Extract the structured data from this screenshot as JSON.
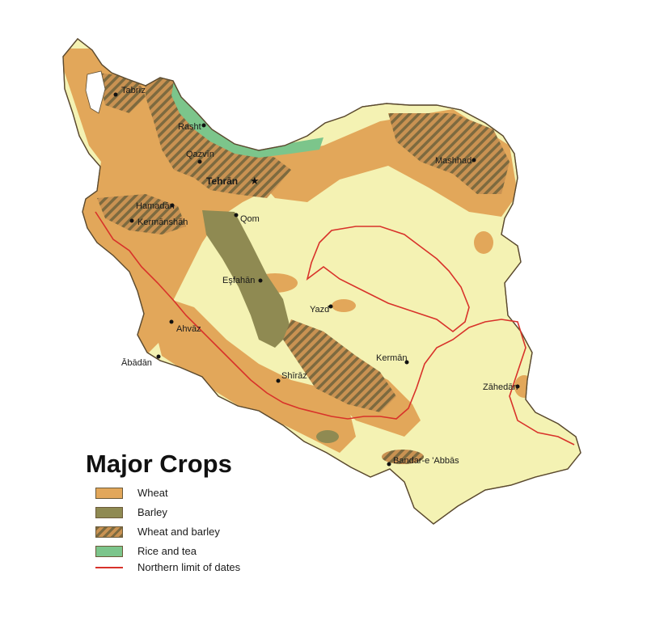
{
  "colors": {
    "background": "#ffffff",
    "land": "#f4f2b3",
    "wheat": "#e2a75a",
    "barley": "#8f8a52",
    "wheat_and_barley_base": "#c99252",
    "wheat_and_barley_hatch": "#7d6a3f",
    "rice_and_tea": "#7cc58b",
    "dates_limit": "#d8322a",
    "water": "#ffffff",
    "border": "#5b4a2f"
  },
  "legend": {
    "title": "Major Crops",
    "items": [
      {
        "label": "Wheat",
        "icon": "wheat-swatch"
      },
      {
        "label": "Barley",
        "icon": "barley-swatch"
      },
      {
        "label": "Wheat and barley",
        "icon": "wheat-and-barley-swatch"
      },
      {
        "label": "Rice and tea",
        "icon": "rice-and-tea-swatch"
      },
      {
        "label": "Northern limit of dates",
        "icon": "red-line-symbol"
      }
    ]
  },
  "cities": [
    {
      "name": "Tabrīz"
    },
    {
      "name": "Rasht"
    },
    {
      "name": "Qazvīn"
    },
    {
      "name": "Tehrān",
      "capital": true
    },
    {
      "name": "Mashhad"
    },
    {
      "name": "Hamadān"
    },
    {
      "name": "Kermānshāh"
    },
    {
      "name": "Qom"
    },
    {
      "name": "Eşfahān"
    },
    {
      "name": "Yazd"
    },
    {
      "name": "Ahvāz"
    },
    {
      "name": "Ābādān"
    },
    {
      "name": "Kermān"
    },
    {
      "name": "Zāhedān"
    },
    {
      "name": "Shīrāz"
    },
    {
      "name": "Bandar-e 'Abbās"
    }
  ]
}
